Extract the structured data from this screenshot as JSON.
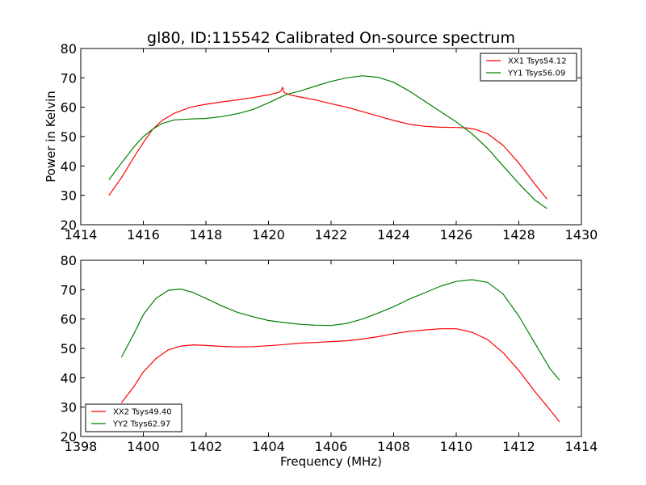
{
  "figure": {
    "title": "gl80, ID:115542 Calibrated On-source spectrum",
    "xlabel": "Frequency (MHz)",
    "ylabel": "Power in Kelvin"
  },
  "colors": {
    "red": "#ff0000",
    "green": "#008000"
  },
  "chart_data": [
    {
      "type": "line",
      "title": "gl80, ID:115542 Calibrated On-source spectrum",
      "xlabel": "",
      "ylabel": "Power in Kelvin",
      "xlim": [
        1414,
        1430
      ],
      "ylim": [
        20,
        80
      ],
      "xticks": [
        1414,
        1416,
        1418,
        1420,
        1422,
        1424,
        1426,
        1428,
        1430
      ],
      "yticks": [
        20,
        30,
        40,
        50,
        60,
        70,
        80
      ],
      "grid": false,
      "legend": "top-right",
      "series": [
        {
          "name": "XX1 Tsys54.12",
          "color": "#ff0000",
          "x": [
            1414.9,
            1415.3,
            1415.7,
            1416.0,
            1416.3,
            1416.6,
            1417.0,
            1417.5,
            1418.0,
            1418.5,
            1419.0,
            1419.5,
            1420.0,
            1420.3,
            1420.4,
            1420.45,
            1420.5,
            1420.7,
            1421.0,
            1421.5,
            1422.0,
            1422.5,
            1423.0,
            1423.5,
            1424.0,
            1424.5,
            1425.0,
            1425.5,
            1426.0,
            1426.3,
            1426.6,
            1427.0,
            1427.5,
            1428.0,
            1428.5,
            1428.9
          ],
          "y": [
            30,
            36,
            43,
            48,
            52.5,
            55.5,
            58,
            60,
            61,
            61.8,
            62.5,
            63.3,
            64.2,
            65,
            65.5,
            66.8,
            65,
            64.2,
            63.5,
            62.5,
            61.2,
            60,
            58.5,
            57,
            55.5,
            54.2,
            53.5,
            53.2,
            53.1,
            53,
            52.5,
            51,
            47,
            41,
            34,
            28.7
          ]
        },
        {
          "name": "YY1 Tsys56.09",
          "color": "#008000",
          "x": [
            1414.9,
            1415.3,
            1415.7,
            1416.0,
            1416.3,
            1416.6,
            1417.0,
            1417.5,
            1418.0,
            1418.5,
            1419.0,
            1419.5,
            1420.0,
            1420.3,
            1420.5,
            1420.7,
            1421.0,
            1421.5,
            1422.0,
            1422.5,
            1423.0,
            1423.5,
            1424.0,
            1424.5,
            1425.0,
            1425.5,
            1426.0,
            1426.5,
            1427.0,
            1427.5,
            1428.0,
            1428.5,
            1428.9
          ],
          "y": [
            35.3,
            41,
            46.5,
            50,
            52.5,
            54.5,
            55.7,
            56,
            56.2,
            56.8,
            57.8,
            59.2,
            61.5,
            63,
            64,
            64.7,
            65.5,
            67.2,
            68.8,
            70,
            70.7,
            70.2,
            68.5,
            65.5,
            62,
            58.5,
            55,
            51,
            46,
            40,
            34,
            28.5,
            25.5
          ]
        }
      ]
    },
    {
      "type": "line",
      "title": "",
      "xlabel": "Frequency (MHz)",
      "ylabel": "",
      "xlim": [
        1398,
        1414
      ],
      "ylim": [
        20,
        80
      ],
      "xticks": [
        1398,
        1400,
        1402,
        1404,
        1406,
        1408,
        1410,
        1412,
        1414
      ],
      "yticks": [
        20,
        30,
        40,
        50,
        60,
        70,
        80
      ],
      "grid": false,
      "legend": "bottom-left",
      "series": [
        {
          "name": "XX2 Tsys49.40",
          "color": "#ff0000",
          "x": [
            1399.3,
            1399.7,
            1400.0,
            1400.4,
            1400.8,
            1401.2,
            1401.6,
            1402.0,
            1402.5,
            1403.0,
            1403.5,
            1404.0,
            1404.5,
            1405.0,
            1405.5,
            1406.0,
            1406.5,
            1407.0,
            1407.5,
            1408.0,
            1408.5,
            1409.0,
            1409.5,
            1410.0,
            1410.5,
            1411.0,
            1411.5,
            1412.0,
            1412.5,
            1413.0,
            1413.3
          ],
          "y": [
            31.5,
            37,
            42,
            46.5,
            49.5,
            50.8,
            51.2,
            51,
            50.7,
            50.5,
            50.6,
            50.9,
            51.3,
            51.8,
            52,
            52.3,
            52.6,
            53.2,
            54,
            55,
            55.8,
            56.3,
            56.7,
            56.7,
            55.5,
            53,
            48.5,
            42.5,
            35.5,
            29,
            25
          ]
        },
        {
          "name": "YY2 Tsys62.97",
          "color": "#008000",
          "x": [
            1399.3,
            1399.7,
            1400.0,
            1400.4,
            1400.8,
            1401.2,
            1401.6,
            1402.0,
            1402.5,
            1403.0,
            1403.5,
            1404.0,
            1404.5,
            1405.0,
            1405.5,
            1406.0,
            1406.5,
            1407.0,
            1407.5,
            1408.0,
            1408.5,
            1409.0,
            1409.5,
            1410.0,
            1410.5,
            1411.0,
            1411.5,
            1412.0,
            1412.5,
            1413.0,
            1413.3
          ],
          "y": [
            47,
            55,
            61.5,
            67,
            69.8,
            70.2,
            69,
            67,
            64.5,
            62.3,
            60.8,
            59.5,
            58.8,
            58.2,
            57.9,
            57.8,
            58.5,
            60,
            62,
            64.2,
            66.8,
            69,
            71.2,
            72.8,
            73.4,
            72.5,
            68.5,
            61,
            52,
            43,
            39.2
          ]
        }
      ]
    }
  ]
}
